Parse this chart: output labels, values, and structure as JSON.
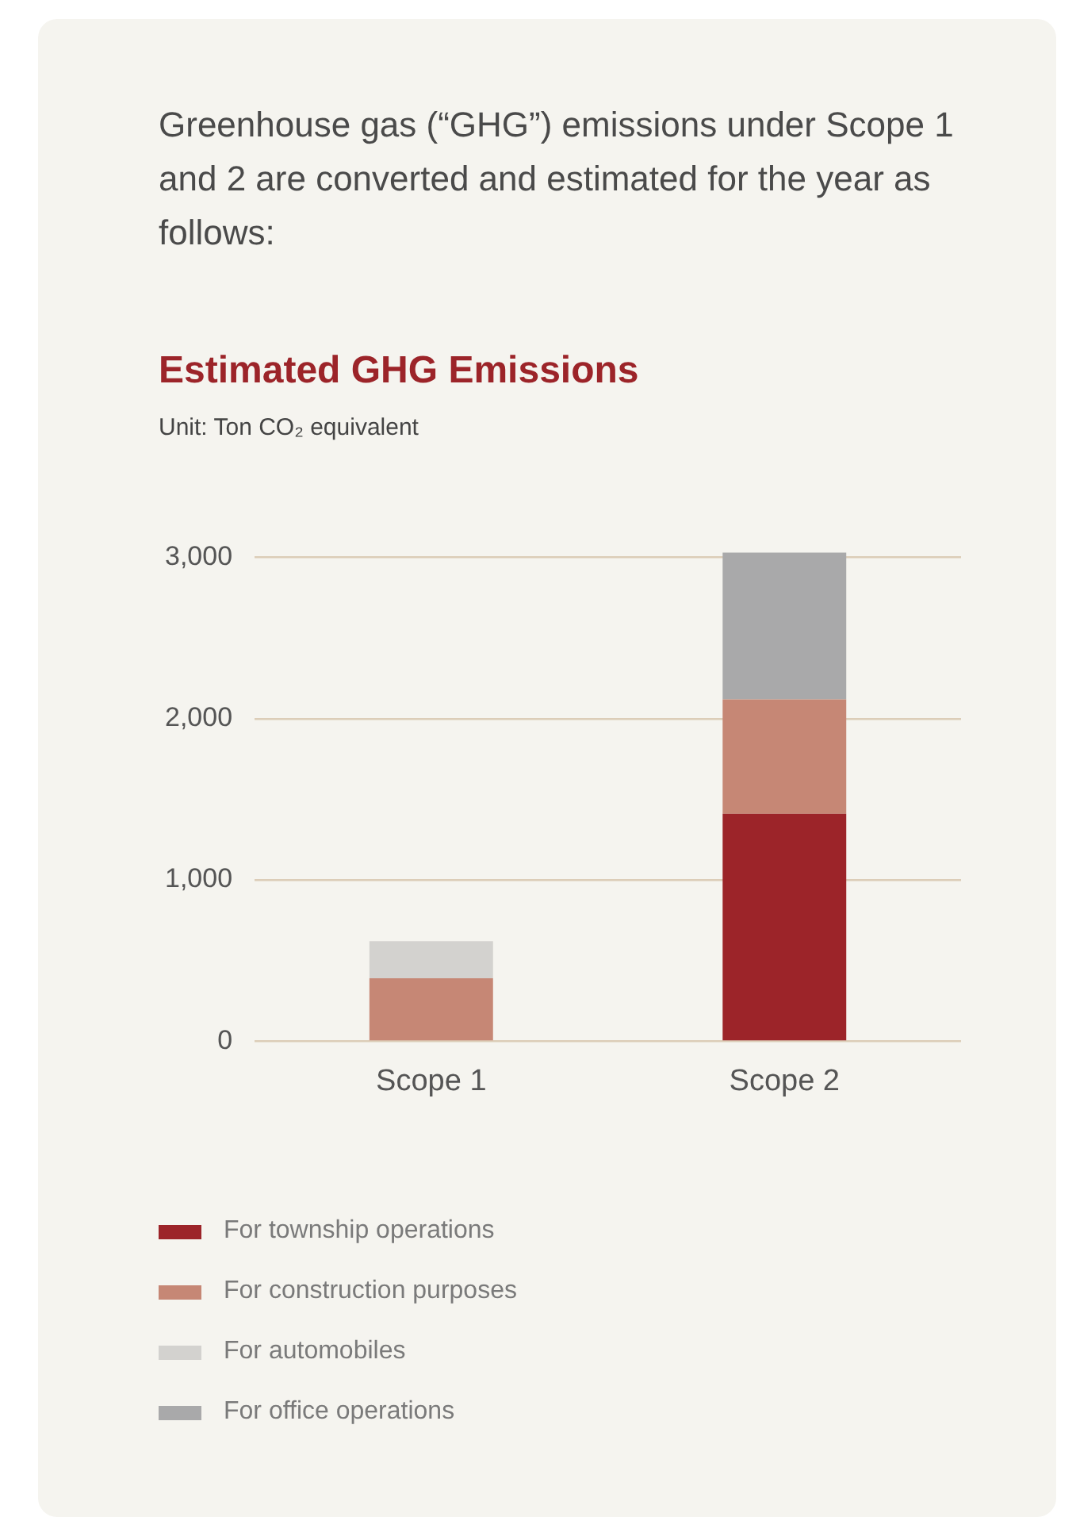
{
  "chart_data": {
    "type": "bar",
    "title": "Estimated GHG Emissions",
    "subtitle": "Unit: Ton CO₂ equivalent",
    "annotations": [
      "Greenhouse gas (“GHG”) emissions under Scope 1 and 2 are converted and estimated for the year as follows:"
    ],
    "categories": [
      "Scope 1",
      "Scope 2"
    ],
    "series": [
      {
        "name": "For township operations",
        "color": "#9c2429",
        "values": [
          0,
          1410
        ]
      },
      {
        "name": "For construction purposes",
        "color": "#c68775",
        "values": [
          390,
          710
        ]
      },
      {
        "name": "For automobiles",
        "color": "#d3d2cf",
        "values": [
          230,
          0
        ]
      },
      {
        "name": "For office operations",
        "color": "#a9a9aa",
        "values": [
          0,
          910
        ]
      }
    ],
    "stacked": true,
    "ylim": [
      0,
      3050
    ],
    "yticks": [
      0,
      {
        "value": 1000,
        "label": "1,000"
      },
      {
        "value": 2000,
        "label": "2,000"
      },
      {
        "value": 3000,
        "label": "3,000"
      }
    ],
    "grid": "y",
    "legend": "bottom left"
  }
}
